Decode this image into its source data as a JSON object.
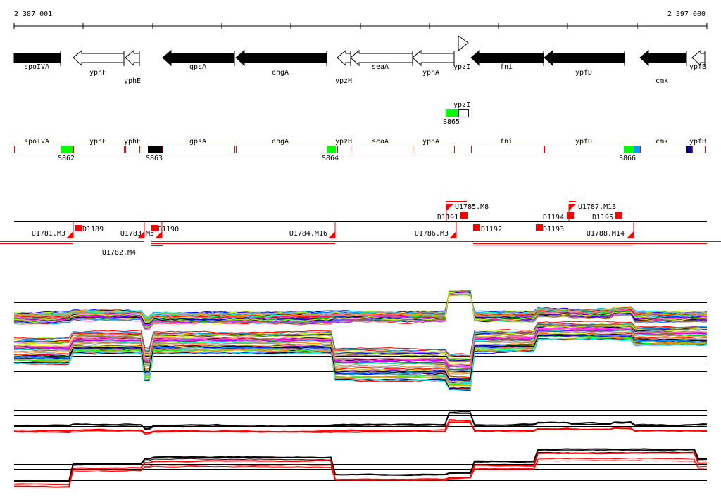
{
  "ruler": {
    "start_label": "2 387 001",
    "end_label": "2 397 000"
  },
  "genes": [
    {
      "name": "spoIVA",
      "strand": "+",
      "filled": true
    },
    {
      "name": "yphF",
      "strand": "-",
      "filled": false
    },
    {
      "name": "yphE",
      "strand": "-",
      "filled": false
    },
    {
      "name": "gpsA",
      "strand": "-",
      "filled": true
    },
    {
      "name": "engA",
      "strand": "-",
      "filled": true
    },
    {
      "name": "ypzH",
      "strand": "-",
      "filled": false
    },
    {
      "name": "seaA",
      "strand": "-",
      "filled": false
    },
    {
      "name": "yphA",
      "strand": "-",
      "filled": false
    },
    {
      "name": "ypzI",
      "strand": "+",
      "filled": false
    },
    {
      "name": "fni",
      "strand": "-",
      "filled": true
    },
    {
      "name": "ypfD",
      "strand": "-",
      "filled": true
    },
    {
      "name": "cmk",
      "strand": "-",
      "filled": true
    },
    {
      "name": "ypfB",
      "strand": "-",
      "filled": false
    }
  ],
  "upstream_row": {
    "gene": "ypzI",
    "site": "S865"
  },
  "transcripts": {
    "genes": [
      "spoIVA",
      "yphF",
      "yphE",
      "gpsA",
      "engA",
      "ypzH",
      "seaA",
      "yphA",
      "fni",
      "ypfD",
      "cmk",
      "ypfB"
    ],
    "sites": [
      "S862",
      "S863",
      "S864",
      "S866"
    ]
  },
  "segments": {
    "up": [
      "U1781.M3",
      "U1782.M4",
      "U1783.M5",
      "U1784.M16",
      "U1785.M8",
      "U1786.M3",
      "U1787.M13",
      "U1788.M14"
    ],
    "down": [
      "D1189",
      "D1190",
      "D1191",
      "D1192",
      "D1193",
      "D1194",
      "D1195"
    ]
  },
  "colors": {
    "red": "#ff0000",
    "green": "#00ff00",
    "lightblue": "#0099ff",
    "navy": "#000080",
    "blue": "#0000ff"
  }
}
